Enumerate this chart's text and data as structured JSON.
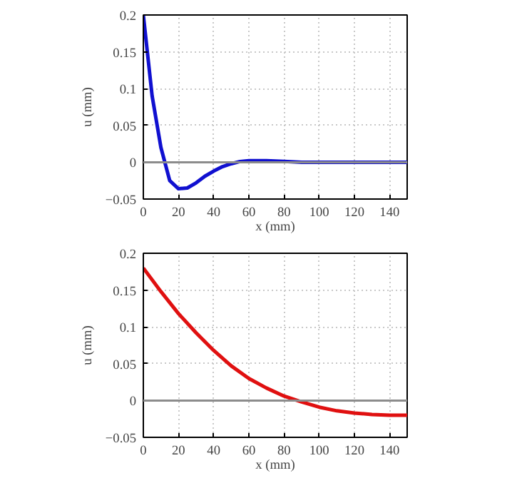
{
  "chart_data": [
    {
      "type": "line",
      "xlabel": "x (mm)",
      "ylabel": "u (mm)",
      "xlim": [
        0,
        150
      ],
      "ylim": [
        -0.05,
        0.2
      ],
      "xticks": [
        0,
        20,
        40,
        60,
        80,
        100,
        120,
        140
      ],
      "yticks": [
        -0.05,
        0,
        0.05,
        0.1,
        0.15,
        0.2
      ],
      "grid": true,
      "line_style": "solid",
      "ref_lines": [
        {
          "axis": "y",
          "value": 0,
          "color": "#8c8c8c"
        }
      ],
      "series": [
        {
          "color": "#1010d0",
          "x": [
            0,
            5,
            10,
            15,
            20,
            25,
            30,
            35,
            40,
            45,
            50,
            55,
            60,
            70,
            80,
            90,
            100,
            120,
            150
          ],
          "values": [
            0.2,
            0.09,
            0.02,
            -0.025,
            -0.036,
            -0.035,
            -0.028,
            -0.019,
            -0.012,
            -0.006,
            -0.002,
            0.001,
            0.002,
            0.002,
            0.001,
            0,
            0,
            0,
            0
          ]
        }
      ]
    },
    {
      "type": "line",
      "xlabel": "x (mm)",
      "ylabel": "u (mm)",
      "xlim": [
        0,
        150
      ],
      "ylim": [
        -0.05,
        0.2
      ],
      "xticks": [
        0,
        20,
        40,
        60,
        80,
        100,
        120,
        140
      ],
      "yticks": [
        -0.05,
        0,
        0.05,
        0.1,
        0.15,
        0.2
      ],
      "grid": true,
      "line_style": "solid",
      "ref_lines": [
        {
          "axis": "y",
          "value": 0,
          "color": "#8c8c8c"
        }
      ],
      "series": [
        {
          "color": "#e01010",
          "x": [
            0,
            10,
            20,
            30,
            40,
            50,
            60,
            70,
            80,
            90,
            100,
            110,
            120,
            130,
            140,
            150
          ],
          "values": [
            0.18,
            0.148,
            0.118,
            0.092,
            0.068,
            0.047,
            0.03,
            0.017,
            0.006,
            -0.002,
            -0.009,
            -0.014,
            -0.017,
            -0.019,
            -0.02,
            -0.02
          ]
        }
      ]
    }
  ]
}
